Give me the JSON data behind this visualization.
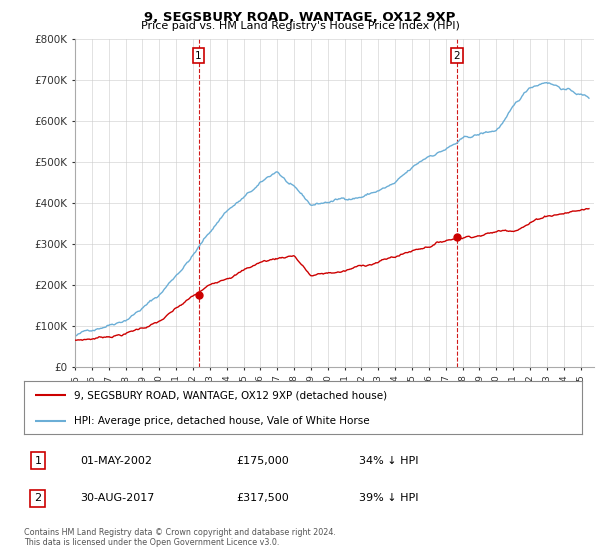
{
  "title": "9, SEGSBURY ROAD, WANTAGE, OX12 9XP",
  "subtitle": "Price paid vs. HM Land Registry's House Price Index (HPI)",
  "ylim": [
    0,
    800000
  ],
  "yticks": [
    0,
    100000,
    200000,
    300000,
    400000,
    500000,
    600000,
    700000,
    800000
  ],
  "ytick_labels": [
    "£0",
    "£100K",
    "£200K",
    "£300K",
    "£400K",
    "£500K",
    "£600K",
    "£700K",
    "£800K"
  ],
  "xlim_start": 1995.0,
  "xlim_end": 2025.8,
  "hpi_color": "#6baed6",
  "price_color": "#cc0000",
  "marker1_year": 2002.33,
  "marker1_price": 175000,
  "marker1_label": "1",
  "marker1_date": "01-MAY-2002",
  "marker1_amount": "£175,000",
  "marker1_pct": "34% ↓ HPI",
  "marker2_year": 2017.66,
  "marker2_price": 317500,
  "marker2_label": "2",
  "marker2_date": "30-AUG-2017",
  "marker2_amount": "£317,500",
  "marker2_pct": "39% ↓ HPI",
  "legend_line1": "9, SEGSBURY ROAD, WANTAGE, OX12 9XP (detached house)",
  "legend_line2": "HPI: Average price, detached house, Vale of White Horse",
  "footer": "Contains HM Land Registry data © Crown copyright and database right 2024.\nThis data is licensed under the Open Government Licence v3.0.",
  "background_color": "#ffffff",
  "grid_color": "#cccccc"
}
